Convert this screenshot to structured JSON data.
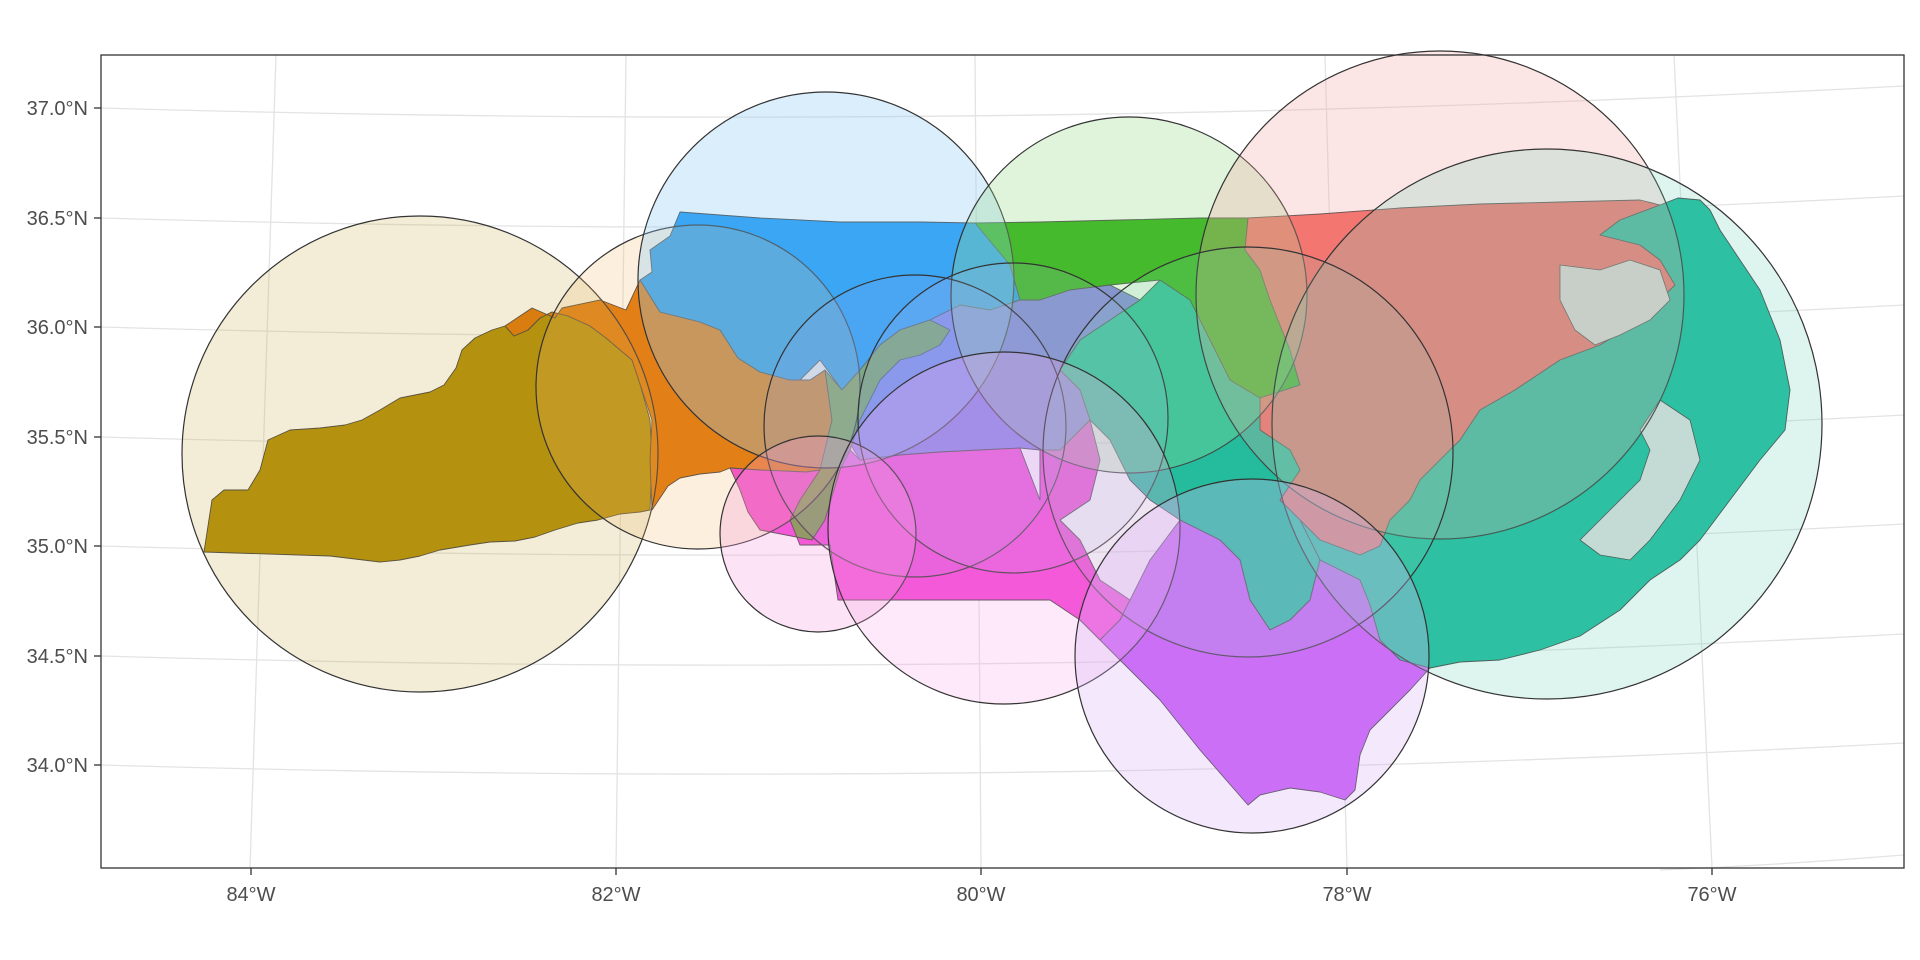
{
  "map": {
    "x_axis": {
      "ticks": [
        "84°W",
        "82°W",
        "80°W",
        "78°W",
        "76°W"
      ]
    },
    "y_axis": {
      "ticks": [
        "37.0°N",
        "36.5°N",
        "36.0°N",
        "35.5°N",
        "35.0°N",
        "34.5°N",
        "34.0°N"
      ]
    },
    "extent": {
      "lon": [
        -84.85,
        -75.05
      ],
      "lat": [
        33.55,
        37.25
      ]
    },
    "colors": {
      "gold": "#b08a00",
      "orange": "#df7000",
      "blue": "#1596f2",
      "green": "#22ad05",
      "red": "#f4645f",
      "teal": "#15b898",
      "magenta": "#f33fd6",
      "purple": "#c454f5",
      "lavender": "#7a78e6",
      "olive": "#6f9a3a",
      "panel_border": "#333333",
      "graticule": "#e3e3e3"
    }
  }
}
